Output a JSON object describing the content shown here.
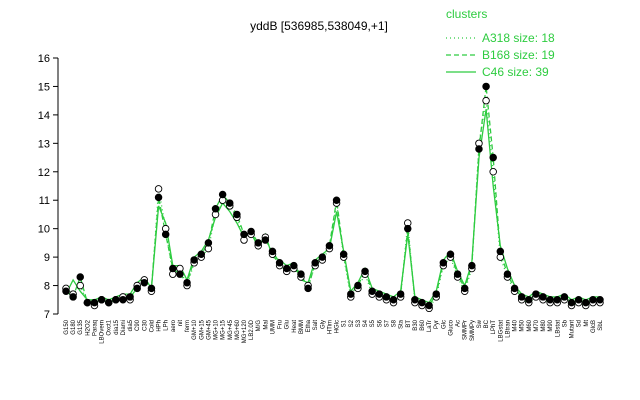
{
  "chart_data": {
    "type": "line",
    "title": "yddB [536985,538049,+1]",
    "xlabel": "",
    "ylabel": "",
    "ylim": [
      7,
      16
    ],
    "yticks": [
      7,
      8,
      9,
      10,
      11,
      12,
      13,
      14,
      15,
      16
    ],
    "legend": {
      "title": "clusters",
      "position": "top-right",
      "entries": [
        {
          "label": "A318 size: 18",
          "style": "dotted"
        },
        {
          "label": "B168 size: 19",
          "style": "dashed"
        },
        {
          "label": "C46 size: 39",
          "style": "solid"
        }
      ]
    },
    "line_color": "#2ecc40",
    "marker_colors": {
      "open": "#ffffff",
      "filled": "#000000"
    },
    "x_tick_labels": [
      "G150",
      "G180",
      "G135",
      "H2O2",
      "Paraq",
      "LBOvern",
      "Oxct1",
      "dia15",
      "Diami",
      "dia5",
      "C90",
      "C30",
      "Cold",
      "HPh",
      "LPh",
      "aero",
      "nit",
      "ferm",
      "GM+10",
      "GM+15",
      "GM+45",
      "MG+10",
      "MG+15",
      "MG+45",
      "MG+60",
      "MG+120",
      "LB2.0D",
      "M/G",
      "Mal",
      "UMM",
      "Fru",
      "Glu",
      "Heat",
      "BMM",
      "Etha",
      "Salt",
      "Gly",
      "HTim",
      "HGlc",
      "S1",
      "S2",
      "S3",
      "S4",
      "S5",
      "S6",
      "S7",
      "S8",
      "Sta",
      "BT",
      "B30",
      "B60",
      "LaTr",
      "Pyr",
      "Glc",
      "Gluco",
      "Ac",
      "SMMPr",
      "SMMPy",
      "Sw",
      "BC",
      "LPhT",
      "LBGstat",
      "LBtran",
      "M40",
      "M50",
      "M60",
      "M70",
      "M80",
      "M90",
      "LBstat",
      "Sb",
      "Mutant",
      "Sd",
      "Mt",
      "GlcB",
      "SbL"
    ],
    "series": [
      {
        "name": "A318 size: 18",
        "values": [
          7.9,
          7.7,
          8.0,
          7.4,
          7.3,
          7.5,
          7.4,
          7.5,
          7.6,
          7.5,
          8.0,
          8.2,
          7.8,
          11.4,
          10.0,
          8.4,
          8.6,
          8.0,
          8.8,
          9.0,
          9.3,
          10.5,
          11.0,
          10.8,
          10.4,
          9.6,
          9.8,
          9.4,
          9.7,
          9.1,
          8.7,
          8.5,
          8.6,
          8.3,
          8.0,
          8.7,
          8.9,
          9.3,
          10.9,
          9.0,
          7.6,
          7.9,
          8.4,
          7.7,
          7.6,
          7.5,
          7.4,
          7.6,
          10.2,
          7.4,
          7.3,
          7.2,
          7.6,
          8.7,
          9.0,
          8.3,
          7.8,
          8.6,
          13.0,
          14.5,
          12.0,
          9.0,
          8.3,
          7.8,
          7.5,
          7.4,
          7.6,
          7.5,
          7.4,
          7.4,
          7.5,
          7.3,
          7.4,
          7.3,
          7.4,
          7.4
        ]
      },
      {
        "name": "B168 size: 19",
        "values": [
          7.8,
          7.6,
          8.3,
          7.4,
          7.4,
          7.5,
          7.4,
          7.5,
          7.5,
          7.6,
          7.9,
          8.1,
          7.9,
          11.1,
          9.8,
          8.6,
          8.4,
          8.1,
          8.9,
          9.1,
          9.5,
          10.7,
          11.2,
          10.9,
          10.5,
          9.8,
          9.9,
          9.5,
          9.6,
          9.2,
          8.8,
          8.6,
          8.7,
          8.4,
          7.9,
          8.8,
          9.0,
          9.4,
          11.0,
          9.1,
          7.7,
          8.0,
          8.5,
          7.8,
          7.7,
          7.6,
          7.5,
          7.7,
          10.0,
          7.5,
          7.4,
          7.3,
          7.7,
          8.8,
          9.1,
          8.4,
          7.9,
          8.7,
          12.8,
          15.0,
          12.5,
          9.2,
          8.4,
          7.9,
          7.6,
          7.5,
          7.7,
          7.6,
          7.5,
          7.5,
          7.6,
          7.4,
          7.5,
          7.4,
          7.5,
          7.5
        ]
      },
      {
        "name": "C46 size: 39",
        "values": [
          7.7,
          8.2,
          7.8,
          7.5,
          7.5,
          7.6,
          7.5,
          7.6,
          7.7,
          7.7,
          8.1,
          8.3,
          7.9,
          10.8,
          10.2,
          8.7,
          8.7,
          8.2,
          9.0,
          9.2,
          9.6,
          10.4,
          10.9,
          10.6,
          10.2,
          9.7,
          9.9,
          9.3,
          9.8,
          9.0,
          8.9,
          8.7,
          8.8,
          8.2,
          8.1,
          8.9,
          9.1,
          9.3,
          10.6,
          9.2,
          7.8,
          8.1,
          8.6,
          7.9,
          7.8,
          7.7,
          7.6,
          7.8,
          9.8,
          7.6,
          7.5,
          7.4,
          7.8,
          8.9,
          9.2,
          8.5,
          8.0,
          8.8,
          12.5,
          14.2,
          11.5,
          9.4,
          8.6,
          8.0,
          7.7,
          7.6,
          7.8,
          7.7,
          7.6,
          7.6,
          7.7,
          7.5,
          7.6,
          7.5,
          7.6,
          7.6
        ]
      }
    ]
  }
}
